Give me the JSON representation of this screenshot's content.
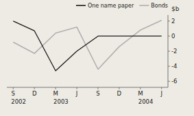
{
  "chart_data": {
    "type": "line",
    "ylabel": "$b",
    "categories": [
      "S",
      "D",
      "M",
      "J",
      "S",
      "D",
      "M",
      "J"
    ],
    "series": [
      {
        "name": "One name paper",
        "color": "#1a1a1a",
        "values": [
          2.0,
          0.7,
          -4.6,
          -2.0,
          0.0,
          0.0,
          0.0,
          0.0
        ]
      },
      {
        "name": "Bonds",
        "color": "#b0b0b0",
        "values": [
          -0.8,
          -2.3,
          0.4,
          1.2,
          -4.4,
          -1.4,
          0.8,
          2.1
        ]
      }
    ],
    "annotations": [
      {
        "text": "2002",
        "x": 0
      },
      {
        "text": "2003",
        "x": 2
      },
      {
        "text": "2004",
        "x": 6
      }
    ],
    "ylim": [
      -6.8,
      2.8
    ],
    "yticks": [
      -6,
      -4,
      -2,
      0,
      2
    ],
    "grid": false,
    "legend": "upper right"
  }
}
